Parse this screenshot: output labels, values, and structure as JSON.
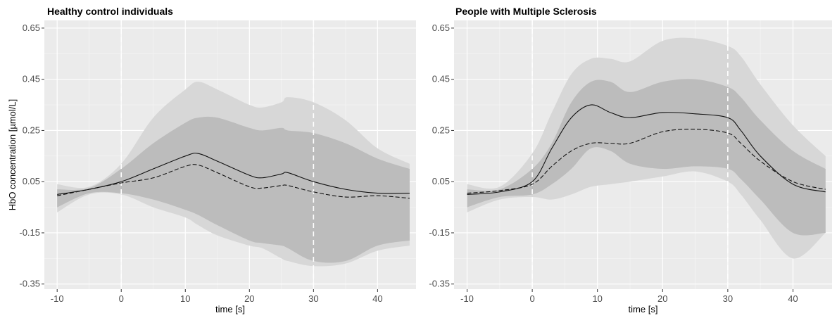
{
  "chart_data": [
    {
      "type": "line",
      "title": "Healthy control individuals",
      "xlabel": "time [s]",
      "ylabel": "HbO concentration [µmol/L]",
      "xlim": [
        -12,
        46
      ],
      "ylim": [
        -0.37,
        0.68
      ],
      "xticks": [
        -10,
        0,
        10,
        20,
        30,
        40
      ],
      "xtick_labels": [
        "-10",
        "0",
        "10",
        "20",
        "30",
        "40"
      ],
      "yticks": [
        -0.35,
        -0.15,
        0.05,
        0.25,
        0.45,
        0.65
      ],
      "ytick_labels": [
        "-0.35",
        "-0.15",
        "0.05",
        "0.25",
        "0.45",
        "0.65"
      ],
      "vlines": [
        0,
        30
      ],
      "grid": true,
      "x": [
        -10,
        -5,
        0,
        5,
        10,
        12,
        15,
        20,
        22,
        25,
        26,
        30,
        35,
        40,
        45
      ],
      "series": [
        {
          "style": "solid",
          "values": [
            0.0,
            0.02,
            0.05,
            0.1,
            0.15,
            0.16,
            0.13,
            0.075,
            0.065,
            0.08,
            0.085,
            0.05,
            0.02,
            0.005,
            0.005
          ]
        },
        {
          "style": "dashed",
          "values": [
            -0.005,
            0.02,
            0.045,
            0.065,
            0.11,
            0.115,
            0.085,
            0.03,
            0.025,
            0.035,
            0.035,
            0.01,
            -0.01,
            -0.005,
            -0.015
          ]
        }
      ],
      "bands": [
        {
          "level": "outer",
          "upper": [
            0.04,
            0.03,
            0.12,
            0.3,
            0.41,
            0.44,
            0.41,
            0.35,
            0.34,
            0.36,
            0.38,
            0.36,
            0.29,
            0.18,
            0.12
          ],
          "lower": [
            -0.07,
            0.0,
            0.0,
            -0.05,
            -0.09,
            -0.12,
            -0.16,
            -0.2,
            -0.21,
            -0.25,
            -0.26,
            -0.28,
            -0.27,
            -0.22,
            -0.2
          ]
        },
        {
          "level": "inner",
          "upper": [
            0.02,
            0.025,
            0.1,
            0.2,
            0.28,
            0.3,
            0.3,
            0.26,
            0.25,
            0.26,
            0.25,
            0.24,
            0.2,
            0.14,
            0.1
          ],
          "lower": [
            -0.05,
            0.005,
            0.005,
            -0.02,
            -0.06,
            -0.08,
            -0.12,
            -0.18,
            -0.19,
            -0.2,
            -0.21,
            -0.26,
            -0.26,
            -0.2,
            -0.18
          ]
        }
      ]
    },
    {
      "type": "line",
      "title": "People with Multiple Sclerosis",
      "xlabel": "time [s]",
      "ylabel": "",
      "xlim": [
        -12,
        46
      ],
      "ylim": [
        -0.37,
        0.68
      ],
      "xticks": [
        -10,
        0,
        10,
        20,
        30,
        40
      ],
      "xtick_labels": [
        "-10",
        "0",
        "10",
        "20",
        "30",
        "40"
      ],
      "yticks": [
        -0.35,
        -0.15,
        0.05,
        0.25,
        0.45,
        0.65
      ],
      "ytick_labels": [
        "-0.35",
        "-0.15",
        "0.05",
        "0.25",
        "0.45",
        "0.65"
      ],
      "vlines": [
        0,
        30
      ],
      "grid": true,
      "x": [
        -10,
        -5,
        0,
        3,
        6,
        9,
        12,
        15,
        20,
        25,
        30,
        32,
        35,
        40,
        45
      ],
      "series": [
        {
          "style": "solid",
          "values": [
            0.0,
            0.01,
            0.05,
            0.18,
            0.3,
            0.35,
            0.32,
            0.3,
            0.32,
            0.315,
            0.3,
            0.25,
            0.15,
            0.04,
            0.01
          ]
        },
        {
          "style": "dashed",
          "values": [
            0.005,
            0.015,
            0.04,
            0.11,
            0.17,
            0.2,
            0.2,
            0.2,
            0.245,
            0.255,
            0.24,
            0.2,
            0.13,
            0.05,
            0.02
          ]
        }
      ],
      "bands": [
        {
          "level": "outer",
          "upper": [
            0.04,
            0.03,
            0.16,
            0.32,
            0.47,
            0.53,
            0.53,
            0.52,
            0.6,
            0.61,
            0.58,
            0.54,
            0.43,
            0.27,
            0.15
          ],
          "lower": [
            -0.07,
            -0.02,
            -0.01,
            -0.02,
            0.0,
            0.03,
            0.04,
            0.05,
            0.07,
            0.09,
            0.05,
            0.0,
            -0.1,
            -0.25,
            -0.15
          ]
        },
        {
          "level": "inner",
          "upper": [
            0.02,
            0.02,
            0.1,
            0.2,
            0.36,
            0.44,
            0.44,
            0.4,
            0.44,
            0.45,
            0.42,
            0.38,
            0.29,
            0.17,
            0.1
          ],
          "lower": [
            -0.05,
            -0.01,
            0.0,
            0.04,
            0.1,
            0.18,
            0.17,
            0.12,
            0.1,
            0.11,
            0.1,
            0.06,
            -0.02,
            -0.15,
            -0.15
          ]
        }
      ]
    }
  ]
}
